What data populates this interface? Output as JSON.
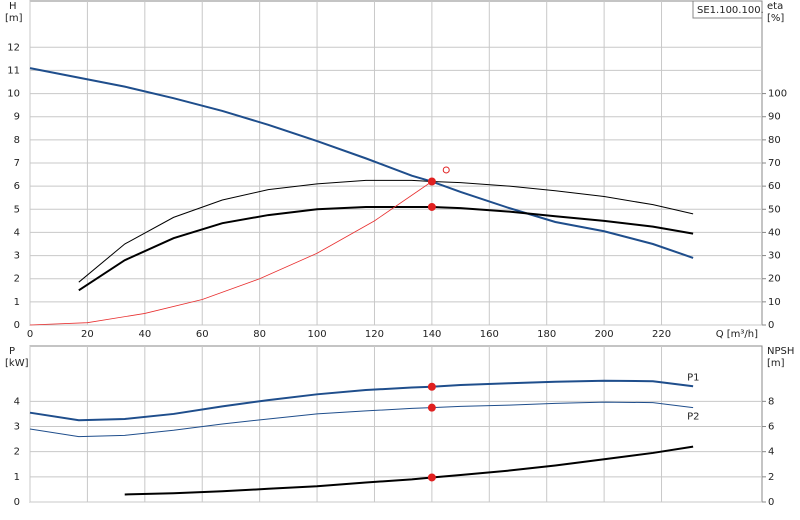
{
  "chart_data": [
    {
      "type": "line",
      "model_label": "SE1.100.100.",
      "y_label": "H",
      "y_unit": "[m]",
      "y2_label": "eta",
      "y2_unit": "[%]",
      "x_label": "Q [m³/h]",
      "xlim": [
        0,
        255
      ],
      "xticks": [
        0,
        20,
        40,
        60,
        80,
        100,
        120,
        140,
        160,
        180,
        200,
        220
      ],
      "ylim": [
        0,
        14
      ],
      "yticks": [
        0,
        1,
        2,
        3,
        4,
        5,
        6,
        7,
        8,
        9,
        10,
        11,
        12
      ],
      "y2lim": [
        0,
        140
      ],
      "y2ticks": [
        0,
        10,
        20,
        30,
        40,
        50,
        60,
        70,
        80,
        90,
        100
      ],
      "grid": true,
      "series": [
        {
          "color": "#1f4e8c",
          "width": 2,
          "x": [
            0,
            33,
            50,
            67,
            83,
            100,
            117,
            133,
            140,
            150,
            167,
            183,
            200,
            217,
            231
          ],
          "values": [
            11.1,
            10.3,
            9.8,
            9.25,
            8.65,
            7.95,
            7.2,
            6.45,
            6.2,
            5.75,
            5.05,
            4.45,
            4.05,
            3.5,
            2.9
          ]
        },
        {
          "color": "#000000",
          "width": 1,
          "axis": "y2",
          "x": [
            17,
            33,
            50,
            67,
            83,
            100,
            117,
            133,
            140,
            150,
            167,
            183,
            200,
            217,
            231
          ],
          "values": [
            18.5,
            35,
            46.5,
            54,
            58.5,
            61,
            62.5,
            62.5,
            62,
            61.5,
            60,
            58,
            55.5,
            52,
            48
          ]
        },
        {
          "color": "#000000",
          "width": 2,
          "axis": "y2",
          "x": [
            17,
            33,
            50,
            67,
            83,
            100,
            117,
            133,
            140,
            150,
            167,
            183,
            200,
            217,
            231
          ],
          "values": [
            15,
            28,
            37.5,
            44,
            47.5,
            50,
            51,
            51,
            51,
            50.5,
            49,
            47,
            45,
            42.5,
            39.5
          ]
        },
        {
          "color": "#e83030",
          "width": 0.8,
          "x": [
            0,
            20,
            40,
            60,
            80,
            100,
            120,
            140
          ],
          "values": [
            0,
            0.1,
            0.5,
            1.1,
            2.0,
            3.1,
            4.5,
            6.2
          ]
        }
      ],
      "markers": [
        {
          "x": 140,
          "y": 6.2,
          "color": "#e02020",
          "filled": true
        },
        {
          "x": 140,
          "y": 51,
          "axis": "y2",
          "color": "#e02020",
          "filled": true
        },
        {
          "x": 145,
          "y": 6.7,
          "color": "#e02020",
          "filled": false
        }
      ]
    },
    {
      "type": "line",
      "y_label": "P",
      "y_unit": "[kW]",
      "y2_label": "NPSH",
      "y2_unit": "[m]",
      "xlim": [
        0,
        255
      ],
      "xticks": [
        0,
        20,
        40,
        60,
        80,
        100,
        120,
        140,
        160,
        180,
        200,
        220
      ],
      "ylim": [
        0,
        6.2
      ],
      "yticks": [
        0,
        1,
        2,
        3,
        4
      ],
      "y2lim": [
        0,
        12.4
      ],
      "y2ticks": [
        0,
        2,
        4,
        6,
        8
      ],
      "grid": true,
      "series": [
        {
          "name": "P1",
          "color": "#1f4e8c",
          "width": 2,
          "x": [
            0,
            17,
            33,
            50,
            67,
            83,
            100,
            117,
            133,
            140,
            150,
            167,
            183,
            200,
            217,
            231
          ],
          "values": [
            3.55,
            3.25,
            3.3,
            3.5,
            3.8,
            4.05,
            4.28,
            4.45,
            4.55,
            4.58,
            4.65,
            4.72,
            4.78,
            4.82,
            4.8,
            4.6
          ]
        },
        {
          "name": "P2",
          "color": "#1f4e8c",
          "width": 1,
          "x": [
            0,
            17,
            33,
            50,
            67,
            83,
            100,
            117,
            133,
            140,
            150,
            167,
            183,
            200,
            217,
            231
          ],
          "values": [
            2.9,
            2.6,
            2.65,
            2.85,
            3.1,
            3.3,
            3.5,
            3.62,
            3.72,
            3.75,
            3.8,
            3.85,
            3.92,
            3.97,
            3.95,
            3.75
          ]
        },
        {
          "color": "#000000",
          "width": 2,
          "axis": "y2",
          "x": [
            33,
            50,
            67,
            83,
            100,
            117,
            133,
            140,
            150,
            167,
            183,
            200,
            217,
            231
          ],
          "values": [
            0.6,
            0.7,
            0.85,
            1.05,
            1.25,
            1.55,
            1.8,
            1.95,
            2.15,
            2.5,
            2.9,
            3.4,
            3.9,
            4.4
          ]
        }
      ],
      "markers": [
        {
          "x": 140,
          "y": 4.58,
          "color": "#e02020",
          "filled": true
        },
        {
          "x": 140,
          "y": 3.75,
          "color": "#e02020",
          "filled": true
        },
        {
          "x": 140,
          "y": 1.95,
          "axis": "y2",
          "color": "#e02020",
          "filled": true
        }
      ]
    }
  ]
}
